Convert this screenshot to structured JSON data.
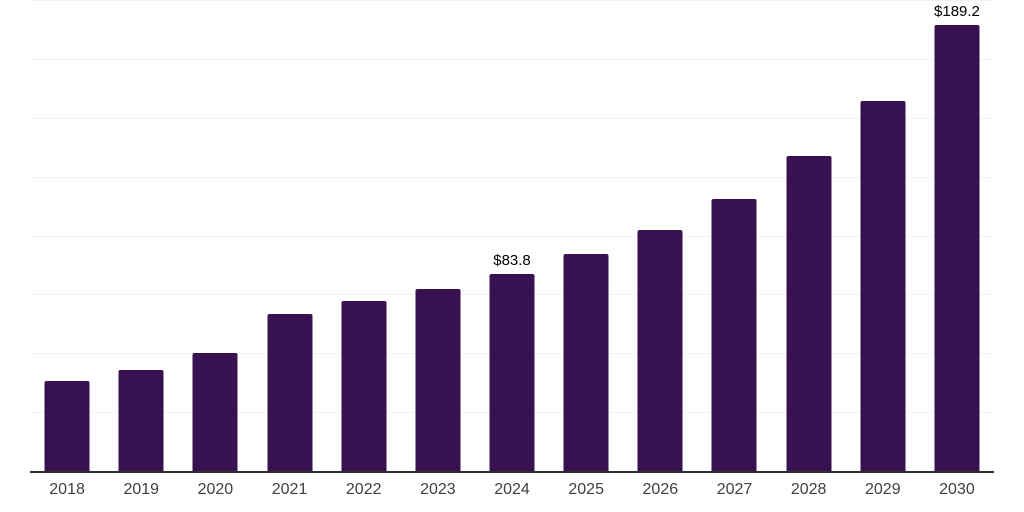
{
  "chart_data": {
    "type": "bar",
    "title": "",
    "xlabel": "",
    "ylabel": "",
    "categories": [
      "2018",
      "2019",
      "2020",
      "2021",
      "2022",
      "2023",
      "2024",
      "2025",
      "2026",
      "2027",
      "2028",
      "2029",
      "2030"
    ],
    "values": [
      38.3,
      43.0,
      50.0,
      66.8,
      72.0,
      77.5,
      83.8,
      92.0,
      102.5,
      115.5,
      133.6,
      157.0,
      189.2
    ],
    "point_labels": {
      "2024": "$83.8",
      "2030": "$189.2"
    },
    "ylim": [
      0,
      200
    ],
    "gridline_step": 25,
    "grid": true,
    "legend": false,
    "colors": {
      "bar": "#371150",
      "gridline": "#f2f2f2",
      "axis_line": "#2d2d2d",
      "x_tick_label": "#404040",
      "point_label": "#000000",
      "background": "#ffffff"
    }
  }
}
